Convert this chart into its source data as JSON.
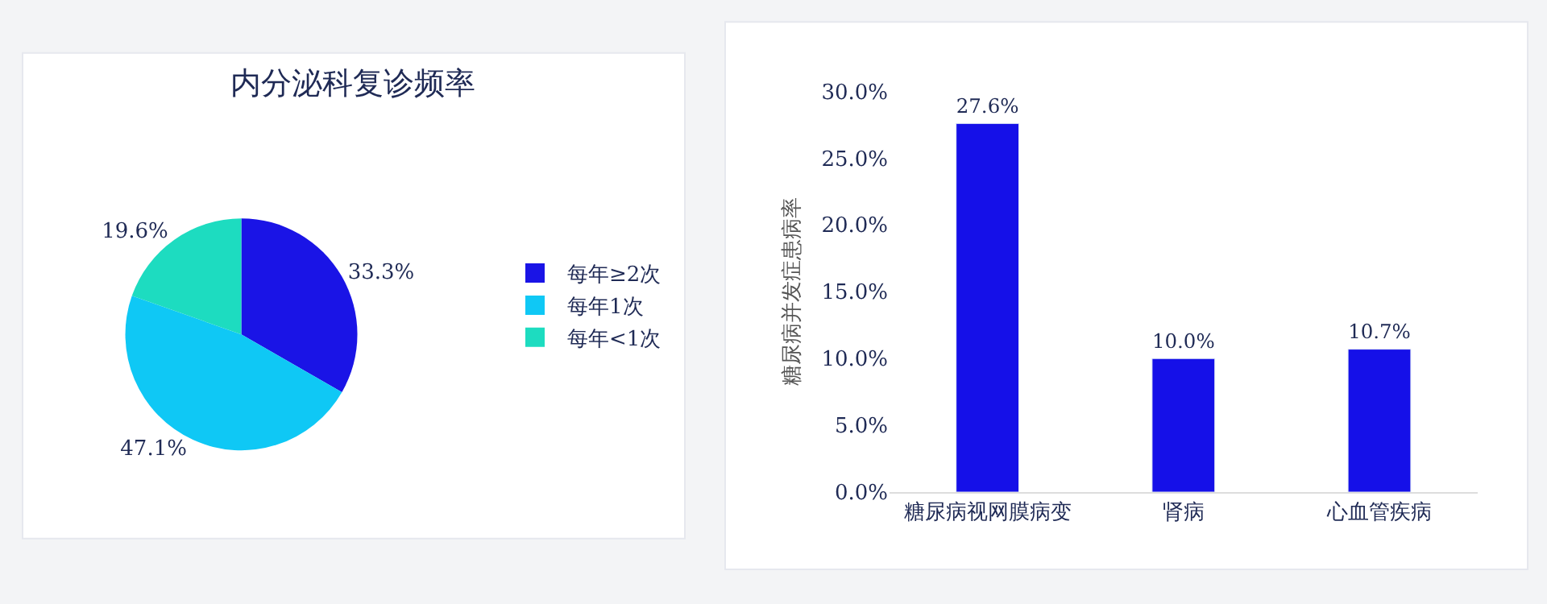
{
  "chart_data": [
    {
      "type": "pie",
      "title": "内分泌科复诊频率",
      "categories": [
        "每年≥2次",
        "每年1次",
        "每年<1次"
      ],
      "values": [
        33.3,
        47.1,
        19.6
      ],
      "value_labels": [
        "33.3%",
        "47.1%",
        "19.6%"
      ],
      "colors": [
        "#1a14e6",
        "#0fc8f5",
        "#1ddcc0"
      ],
      "legend": "right"
    },
    {
      "type": "bar",
      "ylabel": "糖尿病并发症患病率",
      "categories": [
        "糖尿病视网膜病变",
        "肾病",
        "心血管疾病"
      ],
      "values": [
        27.6,
        10.0,
        10.7
      ],
      "value_labels": [
        "27.6%",
        "10.0%",
        "10.7%"
      ],
      "color": "#1510e8",
      "ylim": [
        0,
        30
      ],
      "yticks": [
        {
          "value": 0,
          "label": "0.0%"
        },
        {
          "value": 5,
          "label": "5.0%"
        },
        {
          "value": 10,
          "label": "10.0%"
        },
        {
          "value": 15,
          "label": "15.0%"
        },
        {
          "value": 20,
          "label": "20.0%"
        },
        {
          "value": 25,
          "label": "25.0%"
        },
        {
          "value": 30,
          "label": "30.0%"
        }
      ]
    }
  ]
}
